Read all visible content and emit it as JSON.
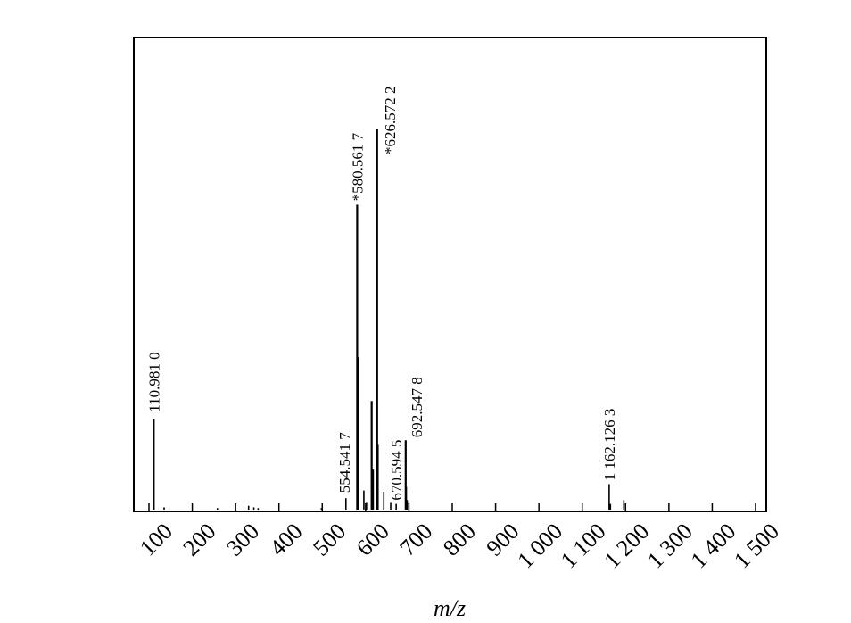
{
  "chart_data": {
    "type": "bar",
    "title": "",
    "xlabel": "m/z",
    "ylabel": "",
    "xlim": [
      95,
      1520
    ],
    "ylim": [
      0,
      100
    ],
    "grid": false,
    "x_ticks": [
      100,
      200,
      300,
      400,
      500,
      600,
      700,
      800,
      900,
      1000,
      1100,
      1200,
      1300,
      1400,
      1500
    ],
    "x_tick_labels": [
      "100",
      "200",
      "300",
      "400",
      "500",
      "600",
      "700",
      "800",
      "900",
      "1 000",
      "1 100",
      "1 200",
      "1 300",
      "1 400",
      "1 500"
    ],
    "peaks": [
      {
        "x": 110.981,
        "y": 23.7
      },
      {
        "x": 554.5417,
        "y": 3.0
      },
      {
        "x": 580.5617,
        "y": 80.0
      },
      {
        "x": 582.0,
        "y": 40.0
      },
      {
        "x": 596.0,
        "y": 5.0
      },
      {
        "x": 602.0,
        "y": 2.0
      },
      {
        "x": 614.0,
        "y": 28.5
      },
      {
        "x": 617.0,
        "y": 10.5
      },
      {
        "x": 626.5722,
        "y": 100.0
      },
      {
        "x": 628.0,
        "y": 17.0
      },
      {
        "x": 642.0,
        "y": 4.7
      },
      {
        "x": 658.0,
        "y": 2.0
      },
      {
        "x": 670.5945,
        "y": 1.5
      },
      {
        "x": 692.5478,
        "y": 18.2
      },
      {
        "x": 694.0,
        "y": 6.0
      },
      {
        "x": 696.0,
        "y": 2.5
      },
      {
        "x": 1162.1263,
        "y": 6.7
      },
      {
        "x": 1165.0,
        "y": 1.5
      },
      {
        "x": 1196.0,
        "y": 2.5
      },
      {
        "x": 135.0,
        "y": 0.6
      },
      {
        "x": 258.0,
        "y": 0.4
      },
      {
        "x": 330.0,
        "y": 1.0
      },
      {
        "x": 342.0,
        "y": 0.6
      },
      {
        "x": 352.0,
        "y": 0.4
      },
      {
        "x": 498.0,
        "y": 0.4
      }
    ],
    "peak_labels": [
      {
        "x": 110.981,
        "y": 23.7,
        "text": "110.981 0"
      },
      {
        "x": 554.5417,
        "y": 3.0,
        "text": "554.541 7"
      },
      {
        "x": 580.5617,
        "y": 80.0,
        "text": "*580.561 7"
      },
      {
        "x": 626.5722,
        "y": 100.0,
        "text": "*626.572 2"
      },
      {
        "x": 670.5945,
        "y": 1.5,
        "text": "670.594 5"
      },
      {
        "x": 692.5478,
        "y": 18.2,
        "text": "692.547 8"
      },
      {
        "x": 1162.1263,
        "y": 6.7,
        "text": "1 162.126 3"
      }
    ]
  }
}
